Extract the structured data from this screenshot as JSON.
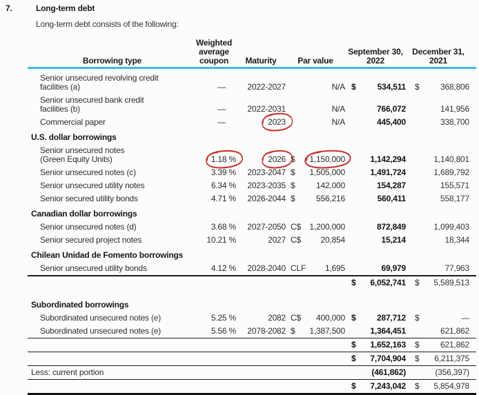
{
  "page": {
    "section_number": "7.",
    "title": "Long-term debt",
    "intro": "Long-term debt consists of the following:"
  },
  "table": {
    "headers": {
      "borrowing_type": "Borrowing type",
      "coupon": [
        "Weighted",
        "average",
        "coupon"
      ],
      "maturity": "Maturity",
      "par_value": "Par value",
      "col_2022": [
        "September 30,",
        "2022"
      ],
      "col_2021": [
        "December 31,",
        "2021"
      ]
    },
    "header_rule_color": "#38bedd",
    "rows": [
      {
        "type": "item",
        "label": "Senior unsecured revolving credit",
        "label2": "facilities (a)",
        "coupon": "—",
        "maturity": "2022-2027",
        "par_cur": "",
        "par": "N/A",
        "cur22": "$",
        "val22": "534,511",
        "cur21": "$",
        "val21": "368,806"
      },
      {
        "type": "item",
        "label": "Senior unsecured bank credit",
        "label2": "facilities (b)",
        "coupon": "—",
        "maturity": "2022-2031",
        "par_cur": "",
        "par": "N/A",
        "cur22": "",
        "val22": "766,072",
        "cur21": "",
        "val21": "141,956"
      },
      {
        "type": "item",
        "label": "Commercial paper",
        "coupon": "—",
        "maturity": "2023",
        "par_cur": "",
        "par": "N/A",
        "cur22": "",
        "val22": "445,400",
        "cur21": "",
        "val21": "338,700",
        "circle": [
          "maturity"
        ]
      },
      {
        "type": "section",
        "label": "U.S. dollar borrowings"
      },
      {
        "type": "item",
        "label": "Senior unsecured notes",
        "label2": "(Green Equity Units)",
        "coupon": "1.18 %",
        "maturity": "2026",
        "par_cur": "$",
        "par": "1,150,000",
        "cur22": "",
        "val22": "1,142,294",
        "cur21": "",
        "val21": "1,140,801",
        "circle": [
          "coupon",
          "maturity",
          "par"
        ]
      },
      {
        "type": "item",
        "label": "Senior unsecured notes (c)",
        "coupon": "3.39 %",
        "maturity": "2023-2047",
        "par_cur": "$",
        "par": "1,505,000",
        "cur22": "",
        "val22": "1,491,724",
        "cur21": "",
        "val21": "1,689,792"
      },
      {
        "type": "item",
        "label": "Senior unsecured utility notes",
        "coupon": "6.34 %",
        "maturity": "2023-2035",
        "par_cur": "$",
        "par": "142,000",
        "cur22": "",
        "val22": "154,287",
        "cur21": "",
        "val21": "155,571"
      },
      {
        "type": "item",
        "label": "Senior secured utility bonds",
        "coupon": "4.71 %",
        "maturity": "2026-2044",
        "par_cur": "$",
        "par": "556,216",
        "cur22": "",
        "val22": "560,411",
        "cur21": "",
        "val21": "558,177"
      },
      {
        "type": "section",
        "label": "Canadian dollar borrowings"
      },
      {
        "type": "item",
        "label": "Senior unsecured notes (d)",
        "coupon": "3.68 %",
        "maturity": "2027-2050",
        "par_cur": "C$",
        "par": "1,200,000",
        "cur22": "",
        "val22": "872,849",
        "cur21": "",
        "val21": "1,099,403"
      },
      {
        "type": "item",
        "label": "Senior secured project notes",
        "coupon": "10.21 %",
        "maturity": "2027",
        "par_cur": "C$",
        "par": "20,854",
        "cur22": "",
        "val22": "15,214",
        "cur21": "",
        "val21": "18,344"
      },
      {
        "type": "section",
        "label": "Chilean Unidad de Fomento borrowings"
      },
      {
        "type": "item",
        "label": "Senior unsecured utility bonds",
        "coupon": "4.12 %",
        "maturity": "2028-2040",
        "par_cur": "CLF",
        "par": "1,695",
        "cur22": "",
        "val22": "69,979",
        "cur21": "",
        "val21": "77,963",
        "rule": "medium"
      },
      {
        "type": "subtotal",
        "cur22": "$",
        "val22": "6,052,741",
        "cur21": "$",
        "val21": "5,589,513"
      },
      {
        "type": "section",
        "label": "Subordinated borrowings",
        "gap": true
      },
      {
        "type": "item",
        "label": "Subordinated unsecured notes (e)",
        "coupon": "5.25 %",
        "maturity": "2082",
        "par_cur": "C$",
        "par": "400,000",
        "cur22": "$",
        "val22": "287,712",
        "cur21": "$",
        "val21": "—"
      },
      {
        "type": "item",
        "label": "Subordinated unsecured notes (e)",
        "coupon": "5.56 %",
        "maturity": "2078-2082",
        "par_cur": "$",
        "par": "1,387,500",
        "cur22": "",
        "val22": "1,364,451",
        "cur21": "",
        "val21": "621,862",
        "rule": "thin"
      },
      {
        "type": "subtotal",
        "cur22": "$",
        "val22": "1,652,163",
        "cur21": "$",
        "val21": "621,862",
        "rule": "thin"
      },
      {
        "type": "subtotal",
        "cur22": "$",
        "val22": "7,704,904",
        "cur21": "$",
        "val21": "6,211,375",
        "rule": "thin"
      },
      {
        "type": "less",
        "label": "Less: current portion",
        "cur22": "",
        "val22": "(461,862)",
        "cur21": "",
        "val21": "(356,397)",
        "rule": "thin"
      },
      {
        "type": "subtotal",
        "cur22": "$",
        "val22": "7,243,042",
        "cur21": "$",
        "val21": "5,854,978",
        "rule": "thick"
      }
    ]
  },
  "annotations": {
    "color": "#c9342b",
    "circled_values": [
      "Commercial paper maturity 2023",
      "Green Equity Units coupon 1.18 %",
      "Green Equity Units maturity 2026",
      "Green Equity Units par value 1,150,000"
    ]
  }
}
